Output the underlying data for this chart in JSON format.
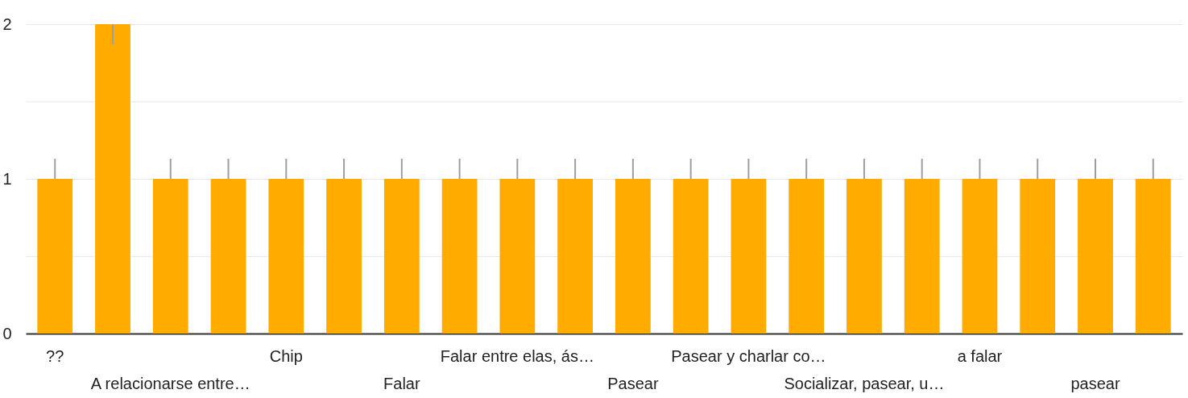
{
  "chart_data": {
    "type": "bar",
    "categories": [
      "??",
      null,
      "A relacionarse entre…",
      null,
      "Chip",
      null,
      "Falar",
      null,
      "Falar entre elas, ás…",
      null,
      "Pasear",
      null,
      "Pasear y charlar co…",
      null,
      "Socializar, pasear, u…",
      null,
      "a falar",
      null,
      "pasear",
      null
    ],
    "values": [
      1,
      2,
      1,
      1,
      1,
      1,
      1,
      1,
      1,
      1,
      1,
      1,
      1,
      1,
      1,
      1,
      1,
      1,
      1,
      1
    ],
    "errors": [
      [
        1,
        1.13
      ],
      [
        1.87,
        2
      ],
      [
        1,
        1.13
      ],
      [
        1,
        1.13
      ],
      [
        1,
        1.13
      ],
      [
        1,
        1.13
      ],
      [
        1,
        1.13
      ],
      [
        1,
        1.13
      ],
      [
        1,
        1.13
      ],
      [
        1,
        1.13
      ],
      [
        1,
        1.13
      ],
      [
        1,
        1.13
      ],
      [
        1,
        1.13
      ],
      [
        1,
        1.13
      ],
      [
        1,
        1.13
      ],
      [
        1,
        1.13
      ],
      [
        1,
        1.13
      ],
      [
        1,
        1.13
      ],
      [
        1,
        1.13
      ],
      [
        1,
        1.13
      ]
    ],
    "color": "#ffab00",
    "ylim": [
      0,
      2
    ],
    "yticks": [
      0,
      {
        "value": 0.5,
        "label": null
      },
      1,
      {
        "value": 1.5,
        "label": null
      },
      2
    ],
    "grid": "y"
  }
}
